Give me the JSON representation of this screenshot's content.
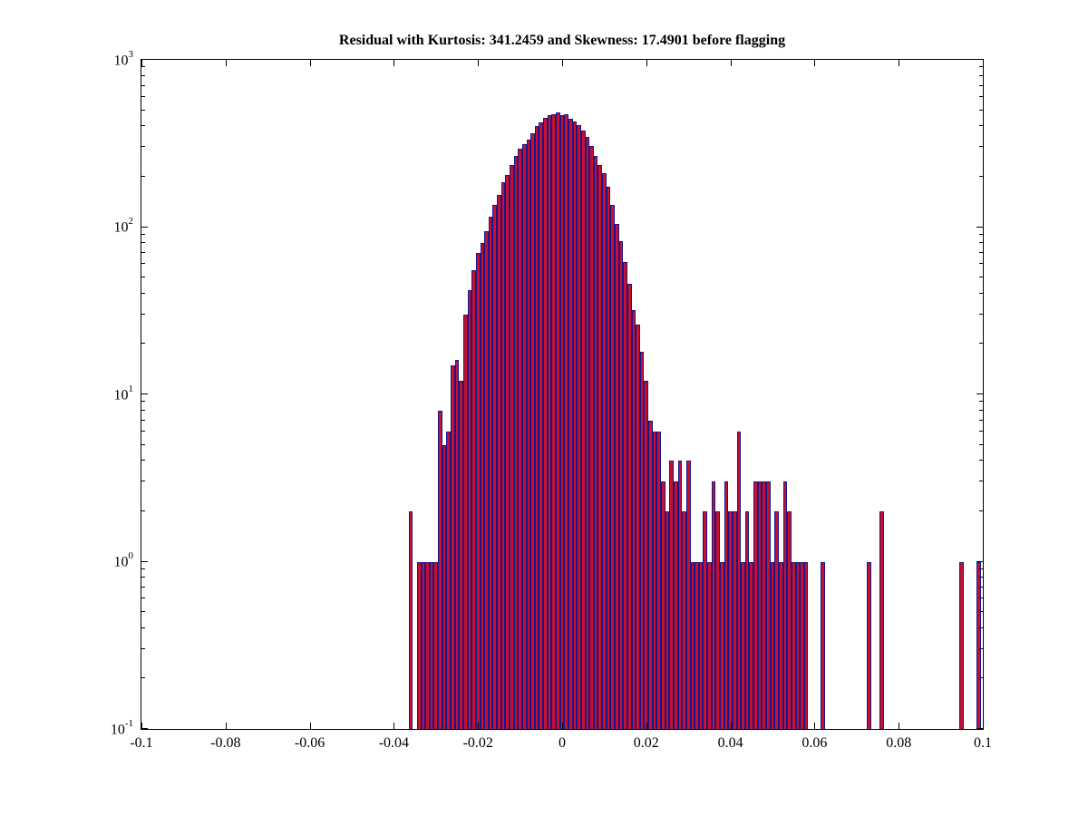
{
  "title": "Residual with Kurtosis: 341.2459 and Skewness: 17.4901 before flagging",
  "chart_data": {
    "type": "bar",
    "title": "Residual with Kurtosis: 341.2459 and Skewness: 17.4901 before flagging",
    "xlabel": "",
    "ylabel": "",
    "grid": "off",
    "legend": "none",
    "y_scale": "log10",
    "xlim": [
      -0.1,
      0.1
    ],
    "ylim_exponents": [
      -1,
      3
    ],
    "bin_width": 0.001,
    "y_tick_base": "10",
    "y_ticks": [
      "-1",
      "0",
      "1",
      "2",
      "3"
    ],
    "x_ticks": [
      {
        "value": -0.1,
        "label": "-0.1"
      },
      {
        "value": -0.08,
        "label": "-0.08"
      },
      {
        "value": -0.06,
        "label": "-0.06"
      },
      {
        "value": -0.04,
        "label": "-0.04"
      },
      {
        "value": -0.02,
        "label": "-0.02"
      },
      {
        "value": 0,
        "label": "0"
      },
      {
        "value": 0.02,
        "label": "0.02"
      },
      {
        "value": 0.04,
        "label": "0.04"
      },
      {
        "value": 0.06,
        "label": "0.06"
      },
      {
        "value": 0.08,
        "label": "0.08"
      },
      {
        "value": 0.1,
        "label": "0.1"
      }
    ],
    "colors": {
      "bar_fill": "#c8102e",
      "bar_edge": "#16168c",
      "axis": "#000000",
      "background": "#ffffff"
    },
    "bins": [
      [
        -0.036,
        2
      ],
      [
        -0.035,
        0
      ],
      [
        -0.034,
        1
      ],
      [
        -0.033,
        1
      ],
      [
        -0.032,
        1
      ],
      [
        -0.031,
        1
      ],
      [
        -0.03,
        1
      ],
      [
        -0.029,
        8
      ],
      [
        -0.028,
        5
      ],
      [
        -0.027,
        6
      ],
      [
        -0.026,
        15
      ],
      [
        -0.025,
        16
      ],
      [
        -0.024,
        12
      ],
      [
        -0.023,
        30
      ],
      [
        -0.022,
        42
      ],
      [
        -0.021,
        55
      ],
      [
        -0.02,
        70
      ],
      [
        -0.019,
        80
      ],
      [
        -0.018,
        95
      ],
      [
        -0.017,
        115
      ],
      [
        -0.016,
        135
      ],
      [
        -0.015,
        155
      ],
      [
        -0.014,
        185
      ],
      [
        -0.013,
        205
      ],
      [
        -0.012,
        235
      ],
      [
        -0.011,
        265
      ],
      [
        -0.01,
        295
      ],
      [
        -0.009,
        315
      ],
      [
        -0.008,
        335
      ],
      [
        -0.007,
        365
      ],
      [
        -0.006,
        400
      ],
      [
        -0.005,
        425
      ],
      [
        -0.004,
        450
      ],
      [
        -0.003,
        465
      ],
      [
        -0.002,
        475
      ],
      [
        -0.001,
        485
      ],
      [
        0.0,
        465
      ],
      [
        0.001,
        475
      ],
      [
        0.002,
        445
      ],
      [
        0.003,
        430
      ],
      [
        0.004,
        405
      ],
      [
        0.005,
        380
      ],
      [
        0.006,
        345
      ],
      [
        0.007,
        305
      ],
      [
        0.008,
        265
      ],
      [
        0.009,
        235
      ],
      [
        0.01,
        210
      ],
      [
        0.011,
        175
      ],
      [
        0.012,
        135
      ],
      [
        0.013,
        105
      ],
      [
        0.014,
        82
      ],
      [
        0.015,
        62
      ],
      [
        0.016,
        46
      ],
      [
        0.017,
        32
      ],
      [
        0.018,
        26
      ],
      [
        0.019,
        18
      ],
      [
        0.02,
        12
      ],
      [
        0.021,
        7
      ],
      [
        0.022,
        6
      ],
      [
        0.023,
        6
      ],
      [
        0.024,
        3
      ],
      [
        0.025,
        2
      ],
      [
        0.026,
        4
      ],
      [
        0.027,
        3
      ],
      [
        0.028,
        4
      ],
      [
        0.029,
        2
      ],
      [
        0.03,
        4
      ],
      [
        0.031,
        1
      ],
      [
        0.032,
        1
      ],
      [
        0.033,
        1
      ],
      [
        0.034,
        2
      ],
      [
        0.035,
        1
      ],
      [
        0.036,
        3
      ],
      [
        0.037,
        2
      ],
      [
        0.038,
        1
      ],
      [
        0.039,
        3
      ],
      [
        0.04,
        2
      ],
      [
        0.041,
        2
      ],
      [
        0.042,
        6
      ],
      [
        0.043,
        1
      ],
      [
        0.044,
        2
      ],
      [
        0.045,
        1
      ],
      [
        0.046,
        3
      ],
      [
        0.047,
        3
      ],
      [
        0.048,
        3
      ],
      [
        0.049,
        3
      ],
      [
        0.05,
        1
      ],
      [
        0.051,
        2
      ],
      [
        0.052,
        1
      ],
      [
        0.053,
        3
      ],
      [
        0.054,
        2
      ],
      [
        0.055,
        1
      ],
      [
        0.056,
        1
      ],
      [
        0.057,
        1
      ],
      [
        0.058,
        1
      ],
      [
        0.062,
        1
      ],
      [
        0.073,
        1
      ],
      [
        0.076,
        2
      ],
      [
        0.095,
        1
      ],
      [
        0.099,
        1
      ]
    ]
  }
}
